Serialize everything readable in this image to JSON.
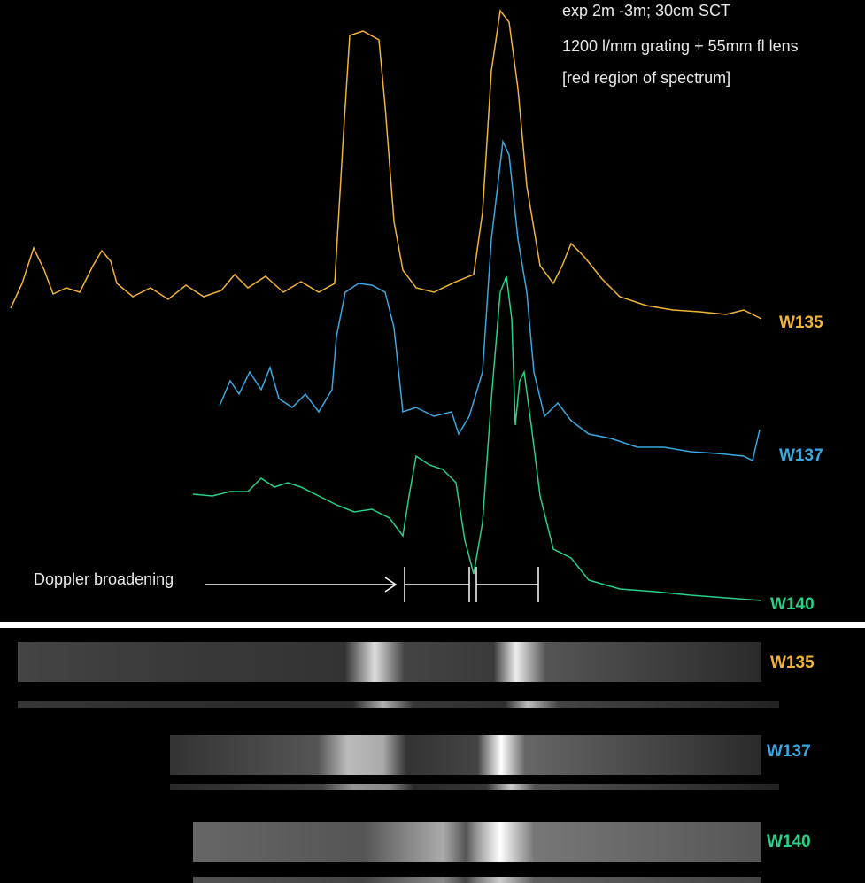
{
  "notes": [
    "exp 2m -3m; 30cm SCT",
    "1200 l/mm grating + 55mm fl lens",
    "[red region of spectrum]"
  ],
  "profile_labels": [
    "W135",
    "W137",
    "W140"
  ],
  "strip_labels": [
    "W135",
    "W137",
    "W140"
  ],
  "annotation": "Doppler broadening"
}
